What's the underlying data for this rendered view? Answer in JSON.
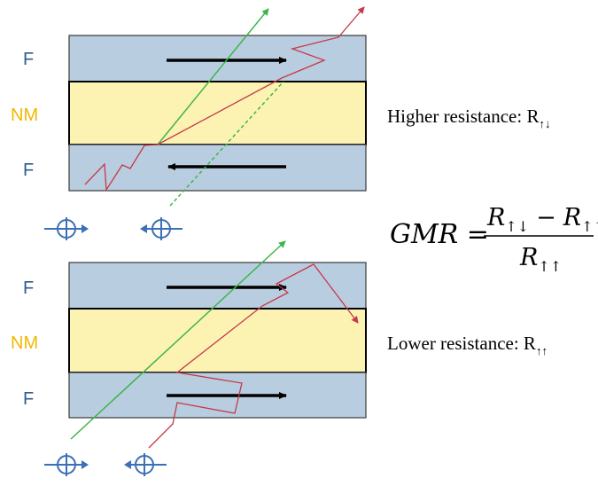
{
  "colors": {
    "ferromagnet": "#b9cde0",
    "nonmagnet": "#fcf3b2",
    "layer_border": "#3a3a3a",
    "label_f": "#2e5d8f",
    "label_nm": "#f2b800",
    "electron_path_red": "#c43a4a",
    "electron_path_green": "#3cb54a",
    "magnetization_arrow": "#000000",
    "spin_symbol": "#3b6fb6"
  },
  "top_stack": {
    "labels": {
      "top": "F",
      "middle": "NM",
      "bottom": "F"
    },
    "caption": {
      "text": "Higher resistance: R",
      "subscript": "↑↓"
    },
    "magnetization": [
      "right",
      "left"
    ]
  },
  "bottom_stack": {
    "labels": {
      "top": "F",
      "middle": "NM",
      "bottom": "F"
    },
    "caption": {
      "text": "Lower resistance: R",
      "subscript": "↑↑"
    },
    "magnetization": [
      "right",
      "right"
    ]
  },
  "formula": {
    "lhs": "GMR =",
    "numerator_a": "R",
    "numerator_a_sub": "↑↓",
    "minus": "−",
    "numerator_b": "R",
    "numerator_b_sub": "↑↑",
    "denominator": "R",
    "denominator_sub": "↑↑"
  },
  "spin_symbols": {
    "top": [
      "spin-right",
      "spin-left"
    ],
    "bottom": [
      "spin-right",
      "spin-left"
    ]
  }
}
